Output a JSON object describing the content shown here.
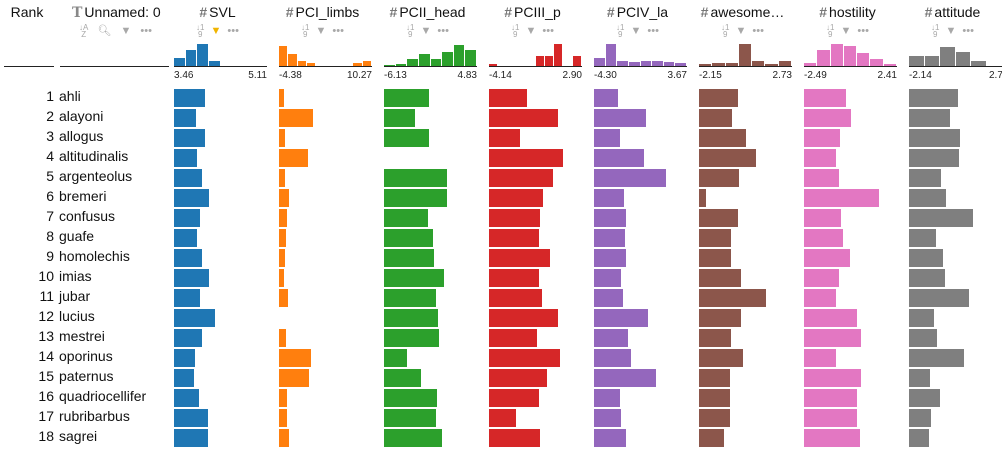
{
  "rank_header": "Rank",
  "name_header": "Unnamed: 0",
  "colors": {
    "SVL": "#1f77b4",
    "PCI_limbs": "#ff7f0e",
    "PCII_head": "#2ca02c",
    "PCIII_p": "#d62728",
    "PCIV_la": "#9467bd",
    "awesome": "#8c564b",
    "hostility": "#e377c2",
    "attitude": "#7f7f7f"
  },
  "chart_data": {
    "type": "table",
    "ranks": [
      1,
      2,
      3,
      4,
      5,
      6,
      7,
      8,
      9,
      10,
      11,
      12,
      13,
      14,
      15,
      16,
      17,
      18
    ],
    "names": [
      "ahli",
      "alayoni",
      "allogus",
      "altitudinalis",
      "argenteolus",
      "bremeri",
      "confusus",
      "guafe",
      "homolechis",
      "imias",
      "jubar",
      "lucius",
      "mestrei",
      "oporinus",
      "paternus",
      "quadriocellifer",
      "rubribarbus",
      "sagrei"
    ],
    "columns": [
      {
        "key": "SVL",
        "label": "SVL",
        "min": "3.46",
        "max": "5.11",
        "range": [
          3.46,
          5.11
        ],
        "values": [
          4.01,
          3.85,
          4.01,
          3.86,
          3.96,
          4.08,
          3.93,
          3.87,
          3.95,
          4.08,
          3.93,
          4.18,
          3.96,
          3.84,
          3.82,
          3.9,
          4.06,
          4.06
        ],
        "hist": [
          0.35,
          0.75,
          1.0,
          0.25,
          0,
          0,
          0,
          0
        ]
      },
      {
        "key": "PCI_limbs",
        "label": "PCI_limbs",
        "min": "-4.38",
        "max": "10.27",
        "range": [
          -4.38,
          10.27
        ],
        "values": [
          -3.54,
          0.92,
          -3.36,
          0.25,
          -3.49,
          -2.74,
          -3.18,
          -3.35,
          -3.38,
          -3.52,
          -2.98,
          null,
          -3.24,
          0.62,
          0.39,
          -3.17,
          -3.05,
          -2.76
        ],
        "hist": [
          0.9,
          0.55,
          0.25,
          0.15,
          0,
          0,
          0,
          0,
          0.15,
          0.25
        ]
      },
      {
        "key": "PCII_head",
        "label": "PCII_head",
        "min": "-6.13",
        "max": "4.83",
        "range": [
          -6.13,
          4.83
        ],
        "values": [
          -0.82,
          -2.48,
          -0.86,
          null,
          1.28,
          1.27,
          -0.94,
          -0.41,
          -0.28,
          0.94,
          -0.06,
          0.27,
          0.37,
          -3.42,
          -1.73,
          0.07,
          -0.01,
          0.74
        ],
        "hist": [
          0.05,
          0.1,
          0.3,
          0.55,
          0.3,
          0.65,
          0.95,
          0.75
        ]
      },
      {
        "key": "PCIII_p",
        "label": "PCIII_p",
        "min": "-4.14",
        "max": "2.90",
        "range": [
          -4.14,
          2.9
        ],
        "values": [
          -1.24,
          1.09,
          -1.82,
          1.45,
          0.72,
          -0.08,
          -0.31,
          -0.32,
          0.49,
          -0.32,
          -0.11,
          1.09,
          -0.53,
          1.22,
          0.25,
          -0.35,
          -2.06,
          -0.31
        ],
        "hist": [
          0.1,
          0,
          0,
          0,
          0,
          0.45,
          0.45,
          1.0,
          0,
          0.45
        ]
      },
      {
        "key": "PCIV_la",
        "label": "PCIV_la",
        "min": "-4.30",
        "max": "3.67",
        "range": [
          -4.3,
          3.67
        ],
        "values": [
          -2.28,
          0.13,
          -2.05,
          -0.02,
          1.84,
          -1.71,
          -1.57,
          -1.61,
          -1.56,
          -2.02,
          -1.8,
          0.34,
          -1.36,
          -1.11,
          0.98,
          -2.03,
          -2.01,
          -1.53
        ],
        "hist": [
          0.35,
          1.0,
          0.25,
          0.2,
          0.25,
          0.25,
          0.2,
          0.15
        ]
      },
      {
        "key": "awesome",
        "label": "awesome_factor",
        "min": "-2.15",
        "max": "2.73",
        "range": [
          -2.15,
          2.73
        ],
        "values": [
          -0.12,
          -0.41,
          0.29,
          0.86,
          -0.07,
          -1.79,
          -0.09,
          -0.47,
          -0.49,
          0.05,
          1.36,
          0.05,
          -0.49,
          0.15,
          -0.51,
          -0.51,
          -0.53,
          -0.85
        ],
        "hist": [
          0.1,
          0.15,
          0.15,
          1.0,
          0.25,
          0.1,
          0.25
        ]
      },
      {
        "key": "hostility",
        "label": "hostility",
        "min": "-2.49",
        "max": "2.41",
        "range": [
          -2.49,
          2.41
        ],
        "values": [
          -0.26,
          -0.03,
          -0.57,
          -0.81,
          -0.64,
          1.48,
          -0.56,
          -0.43,
          -0.07,
          -0.63,
          -0.78,
          0.32,
          0.53,
          -0.81,
          0.53,
          0.32,
          0.32,
          0.44
        ],
        "hist": [
          0.15,
          0.75,
          1.0,
          0.9,
          0.6,
          0.3,
          0.1
        ]
      },
      {
        "key": "attitude",
        "label": "attitude",
        "min": "-2.14",
        "max": "2.7",
        "range": [
          -2.14,
          2.7
        ],
        "values": [
          0.41,
          0.01,
          0.54,
          0.45,
          -0.47,
          -0.22,
          1.21,
          -0.72,
          -0.35,
          -0.26,
          0.99,
          -0.82,
          -0.7,
          0.71,
          -1.07,
          -0.51,
          -0.97,
          -1.09
        ],
        "hist": [
          0.45,
          0.45,
          0.85,
          0.65,
          0.25,
          0
        ]
      }
    ]
  }
}
